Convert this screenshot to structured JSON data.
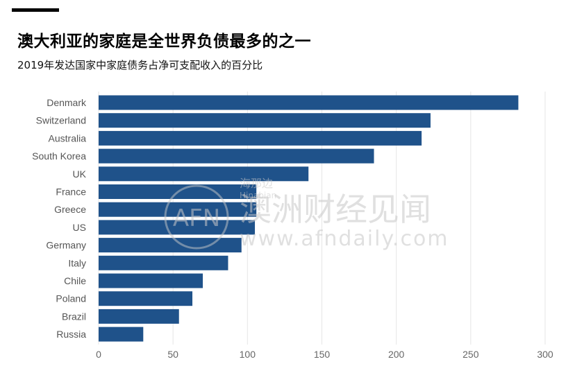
{
  "header": {
    "title": "澳大利亚的家庭是全世界负债最多的之一",
    "subtitle": "2019年发达国家中家庭债务占净可支配收入的百分比"
  },
  "watermark": {
    "logo_text": "AFN",
    "brand": "澳洲财经见闻",
    "url": "www.afndaily.com",
    "faint_text": "海那边",
    "faint_sub": "Hinabian"
  },
  "colors": {
    "bar": "#1f528a",
    "grid": "#e6e6e6"
  },
  "chart_data": {
    "type": "bar",
    "orientation": "horizontal",
    "title": "澳大利亚的家庭是全世界负债最多的之一",
    "subtitle": "2019年发达国家中家庭债务占净可支配收入的百分比",
    "categories": [
      "Denmark",
      "Switzerland",
      "Australia",
      "South Korea",
      "UK",
      "France",
      "Greece",
      "US",
      "Germany",
      "Italy",
      "Chile",
      "Poland",
      "Brazil",
      "Russia"
    ],
    "values": [
      282,
      223,
      217,
      185,
      141,
      106,
      106,
      105,
      96,
      87,
      70,
      63,
      54,
      30
    ],
    "xlim": [
      0,
      300
    ],
    "xticks": [
      0,
      50,
      100,
      150,
      200,
      250,
      300
    ],
    "grid": true,
    "xlabel": "",
    "ylabel": ""
  }
}
